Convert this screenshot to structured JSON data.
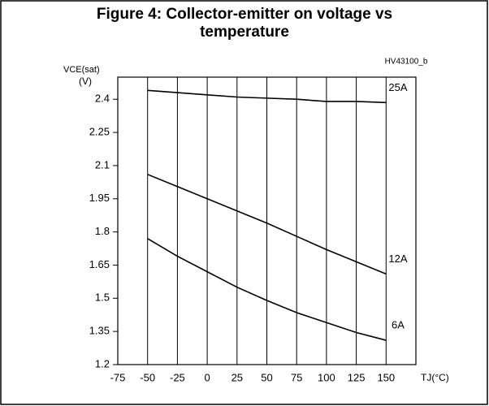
{
  "chart_data": {
    "type": "line",
    "title_lines": [
      "Figure 4: Collector-emitter on voltage vs",
      "temperature"
    ],
    "figure_code": "HV43100_b",
    "y_label": "VCE(sat)",
    "y_unit": "(V)",
    "x_label": "TJ(°C)",
    "x": [
      -50,
      -25,
      0,
      25,
      50,
      75,
      100,
      125,
      150
    ],
    "series": [
      {
        "name": "25A",
        "color": "#000000",
        "values": [
          2.44,
          2.43,
          2.42,
          2.41,
          2.405,
          2.4,
          2.39,
          2.39,
          2.385
        ]
      },
      {
        "name": "12A",
        "color": "#000000",
        "values": [
          2.06,
          2.005,
          1.95,
          1.895,
          1.84,
          1.78,
          1.72,
          1.665,
          1.61
        ]
      },
      {
        "name": "6A",
        "color": "#000000",
        "values": [
          1.77,
          1.69,
          1.62,
          1.55,
          1.49,
          1.435,
          1.39,
          1.345,
          1.31
        ]
      }
    ],
    "xlim": [
      -75,
      175
    ],
    "xticks": [
      -75,
      -50,
      -25,
      0,
      25,
      50,
      75,
      100,
      125,
      150
    ],
    "ylim": [
      1.2,
      2.5
    ],
    "yticks": [
      1.2,
      1.35,
      1.5,
      1.65,
      1.8,
      1.95,
      2.1,
      2.25,
      2.4
    ],
    "grid": true
  }
}
